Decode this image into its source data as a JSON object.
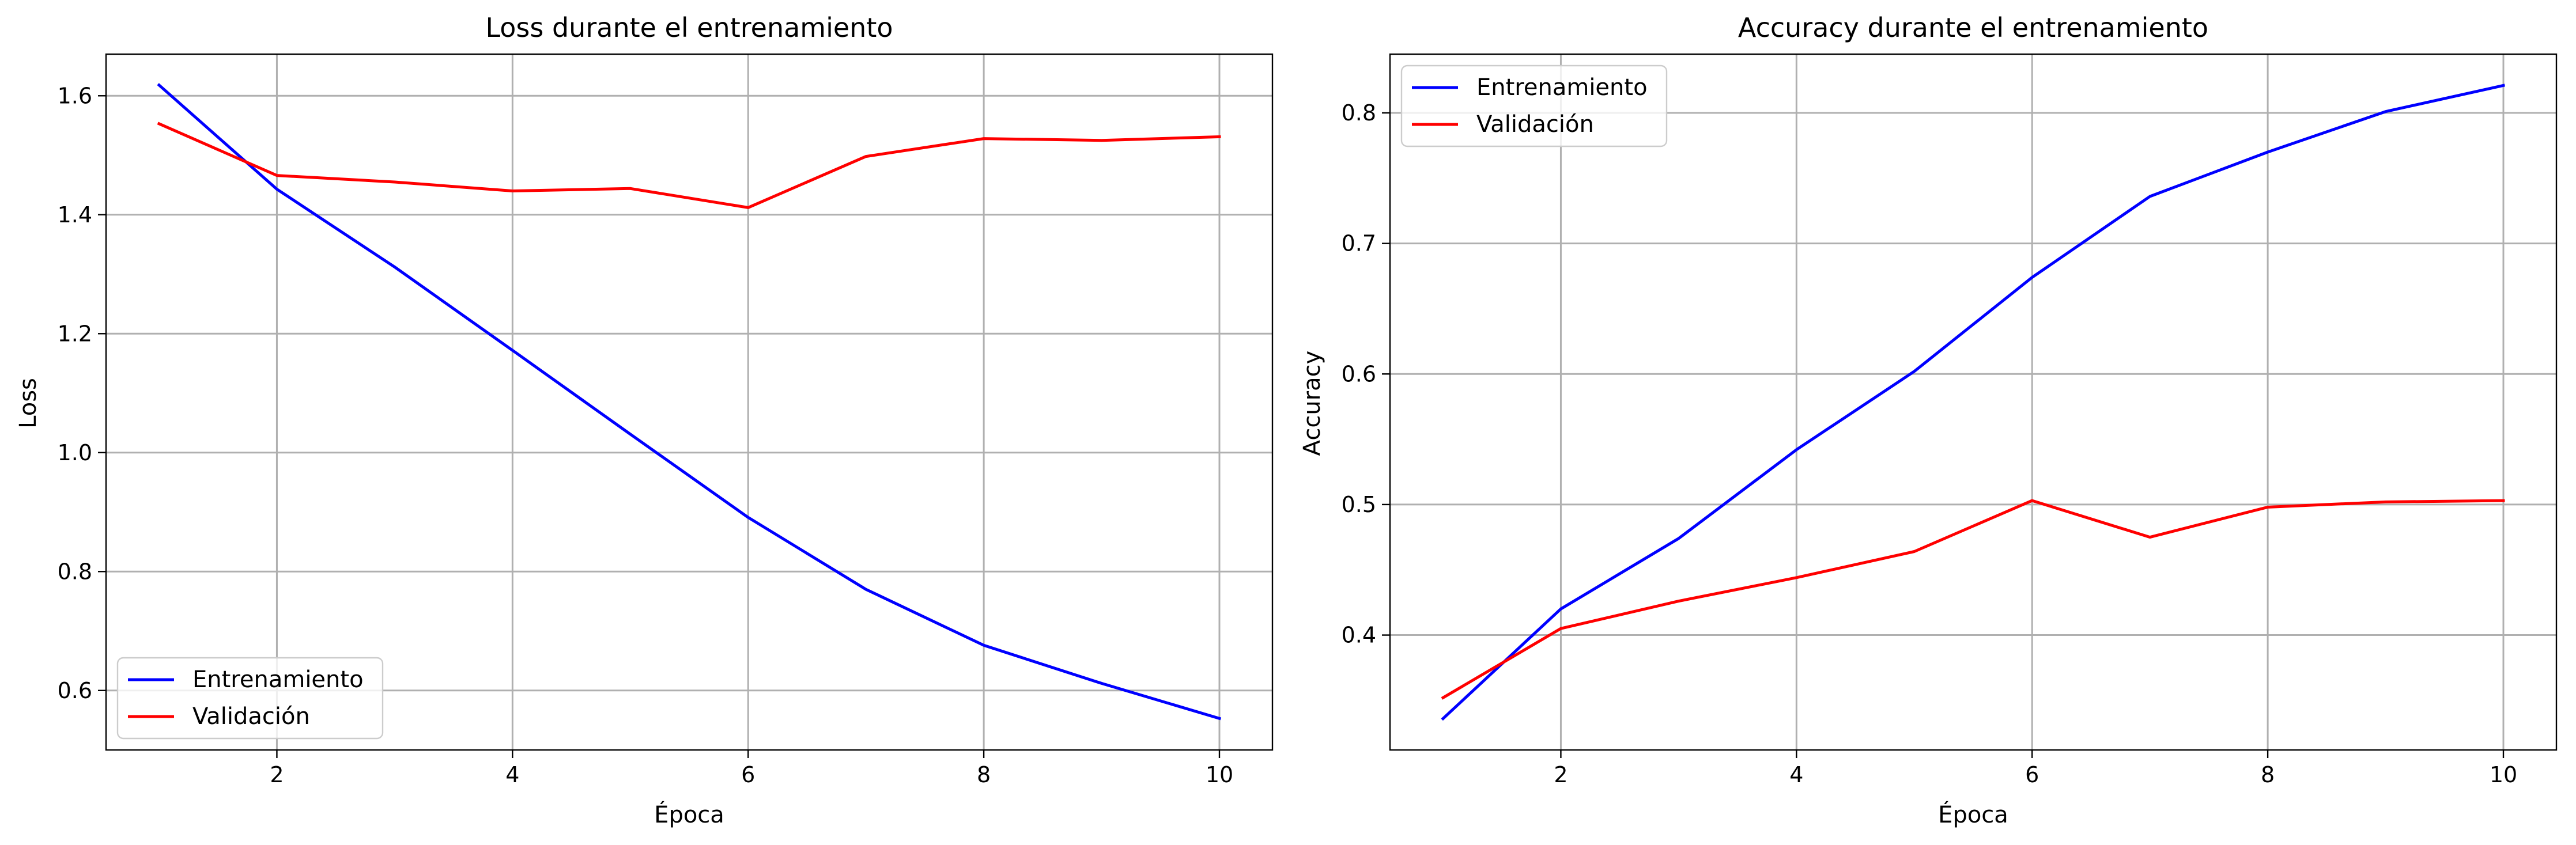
{
  "chart_data": [
    {
      "type": "line",
      "title": "Loss durante el entrenamiento",
      "xlabel": "Época",
      "ylabel": "Loss",
      "x": [
        1,
        2,
        3,
        4,
        5,
        6,
        7,
        8,
        9,
        10
      ],
      "xlim": [
        0.55,
        10.45
      ],
      "ylim": [
        0.5,
        1.67
      ],
      "xticks": [
        2,
        4,
        6,
        8,
        10
      ],
      "yticks": [
        0.6,
        0.8,
        1.0,
        1.2,
        1.4,
        1.6
      ],
      "ytick_labels": [
        "0.6",
        "0.8",
        "1.0",
        "1.2",
        "1.4",
        "1.6"
      ],
      "grid": true,
      "legend_position": "lower-left",
      "series": [
        {
          "name": "Entrenamiento",
          "color": "#0000ff",
          "values": [
            1.618,
            1.443,
            1.312,
            1.172,
            1.031,
            0.891,
            0.77,
            0.676,
            0.612,
            0.553
          ]
        },
        {
          "name": "Validación",
          "color": "#ff0000",
          "values": [
            1.553,
            1.466,
            1.455,
            1.44,
            1.444,
            1.412,
            1.498,
            1.528,
            1.525,
            1.531
          ]
        }
      ]
    },
    {
      "type": "line",
      "title": "Accuracy durante el entrenamiento",
      "xlabel": "Época",
      "ylabel": "Accuracy",
      "x": [
        1,
        2,
        3,
        4,
        5,
        6,
        7,
        8,
        9,
        10
      ],
      "xlim": [
        0.55,
        10.45
      ],
      "ylim": [
        0.312,
        0.845
      ],
      "xticks": [
        2,
        4,
        6,
        8,
        10
      ],
      "yticks": [
        0.4,
        0.5,
        0.6,
        0.7,
        0.8
      ],
      "ytick_labels": [
        "0.4",
        "0.5",
        "0.6",
        "0.7",
        "0.8"
      ],
      "grid": true,
      "legend_position": "upper-left",
      "series": [
        {
          "name": "Entrenamiento",
          "color": "#0000ff",
          "values": [
            0.336,
            0.42,
            0.474,
            0.542,
            0.602,
            0.674,
            0.736,
            0.77,
            0.801,
            0.821
          ]
        },
        {
          "name": "Validación",
          "color": "#ff0000",
          "values": [
            0.352,
            0.405,
            0.426,
            0.444,
            0.464,
            0.503,
            0.475,
            0.498,
            0.502,
            0.503
          ]
        }
      ]
    }
  ]
}
